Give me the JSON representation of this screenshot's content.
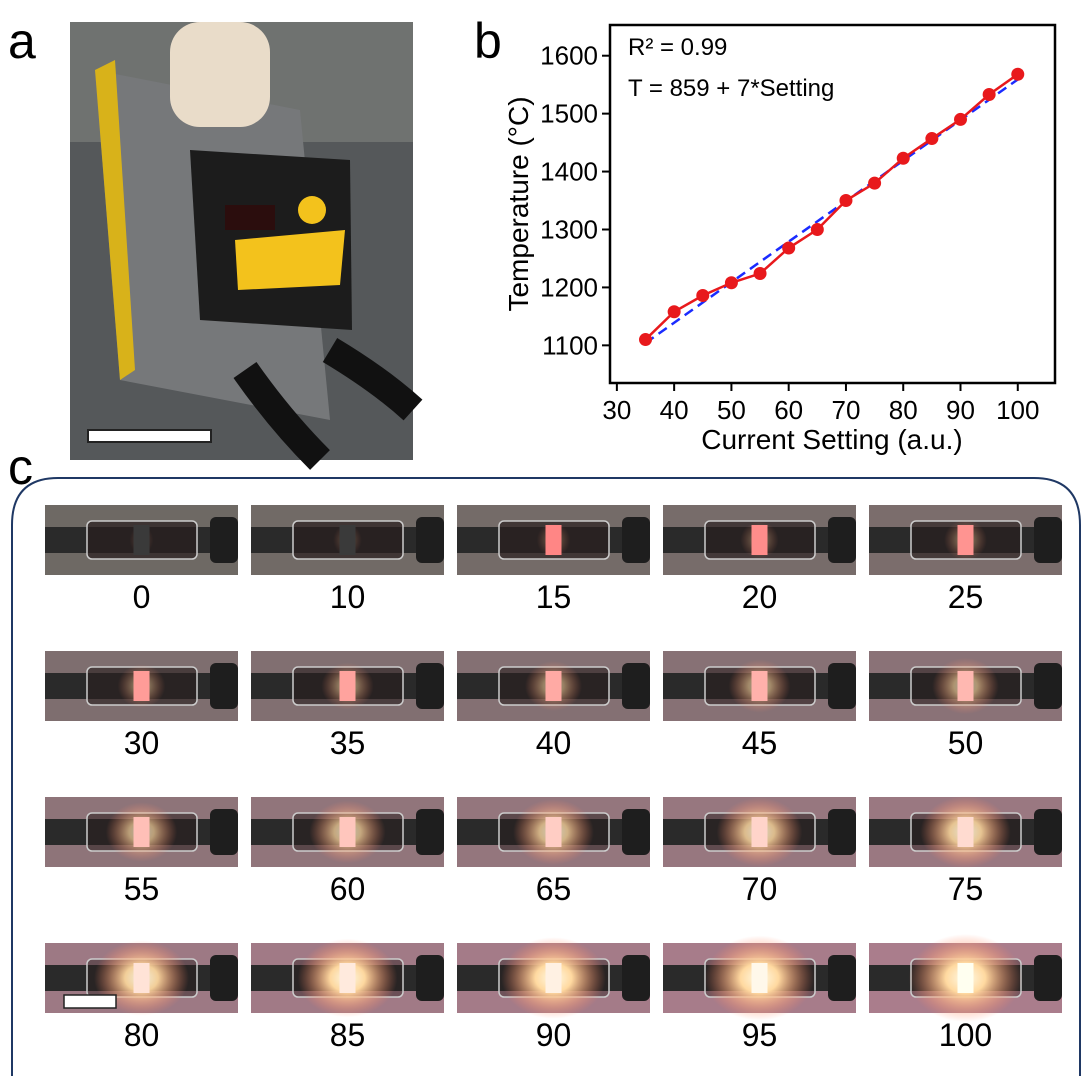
{
  "panel_labels": [
    "a",
    "b",
    "c"
  ],
  "chart_data": {
    "type": "line",
    "x_label": "Current Setting (a.u.)",
    "y_label": "Temperature (°C)",
    "annotations": [
      "R² = 0.99",
      "T = 859 + 7*Setting"
    ],
    "x": [
      35,
      40,
      45,
      50,
      55,
      60,
      65,
      70,
      75,
      80,
      85,
      90,
      95,
      100
    ],
    "series": [
      {
        "color": "#e8191c",
        "marker": "circle",
        "values": [
          1110,
          1158,
          1186,
          1208,
          1224,
          1268,
          1300,
          1350,
          1380,
          1423,
          1457,
          1490,
          1533,
          1568
        ]
      },
      {
        "color": "#1a2bff",
        "dashed": true,
        "values": [
          1104,
          1139,
          1174,
          1209,
          1244,
          1279,
          1314,
          1349,
          1384,
          1419,
          1454,
          1489,
          1524,
          1559
        ]
      }
    ],
    "xlim": [
      28.8,
      106.5
    ],
    "ylim": [
      1035,
      1653
    ],
    "xticks": [
      30,
      40,
      50,
      60,
      70,
      80,
      90,
      100
    ],
    "yticks": [
      1100,
      1200,
      1300,
      1400,
      1500,
      1600
    ]
  },
  "photos": {
    "labels": [
      0,
      10,
      15,
      20,
      25,
      30,
      35,
      40,
      45,
      50,
      55,
      60,
      65,
      70,
      75,
      80,
      85,
      90,
      95,
      100
    ]
  }
}
